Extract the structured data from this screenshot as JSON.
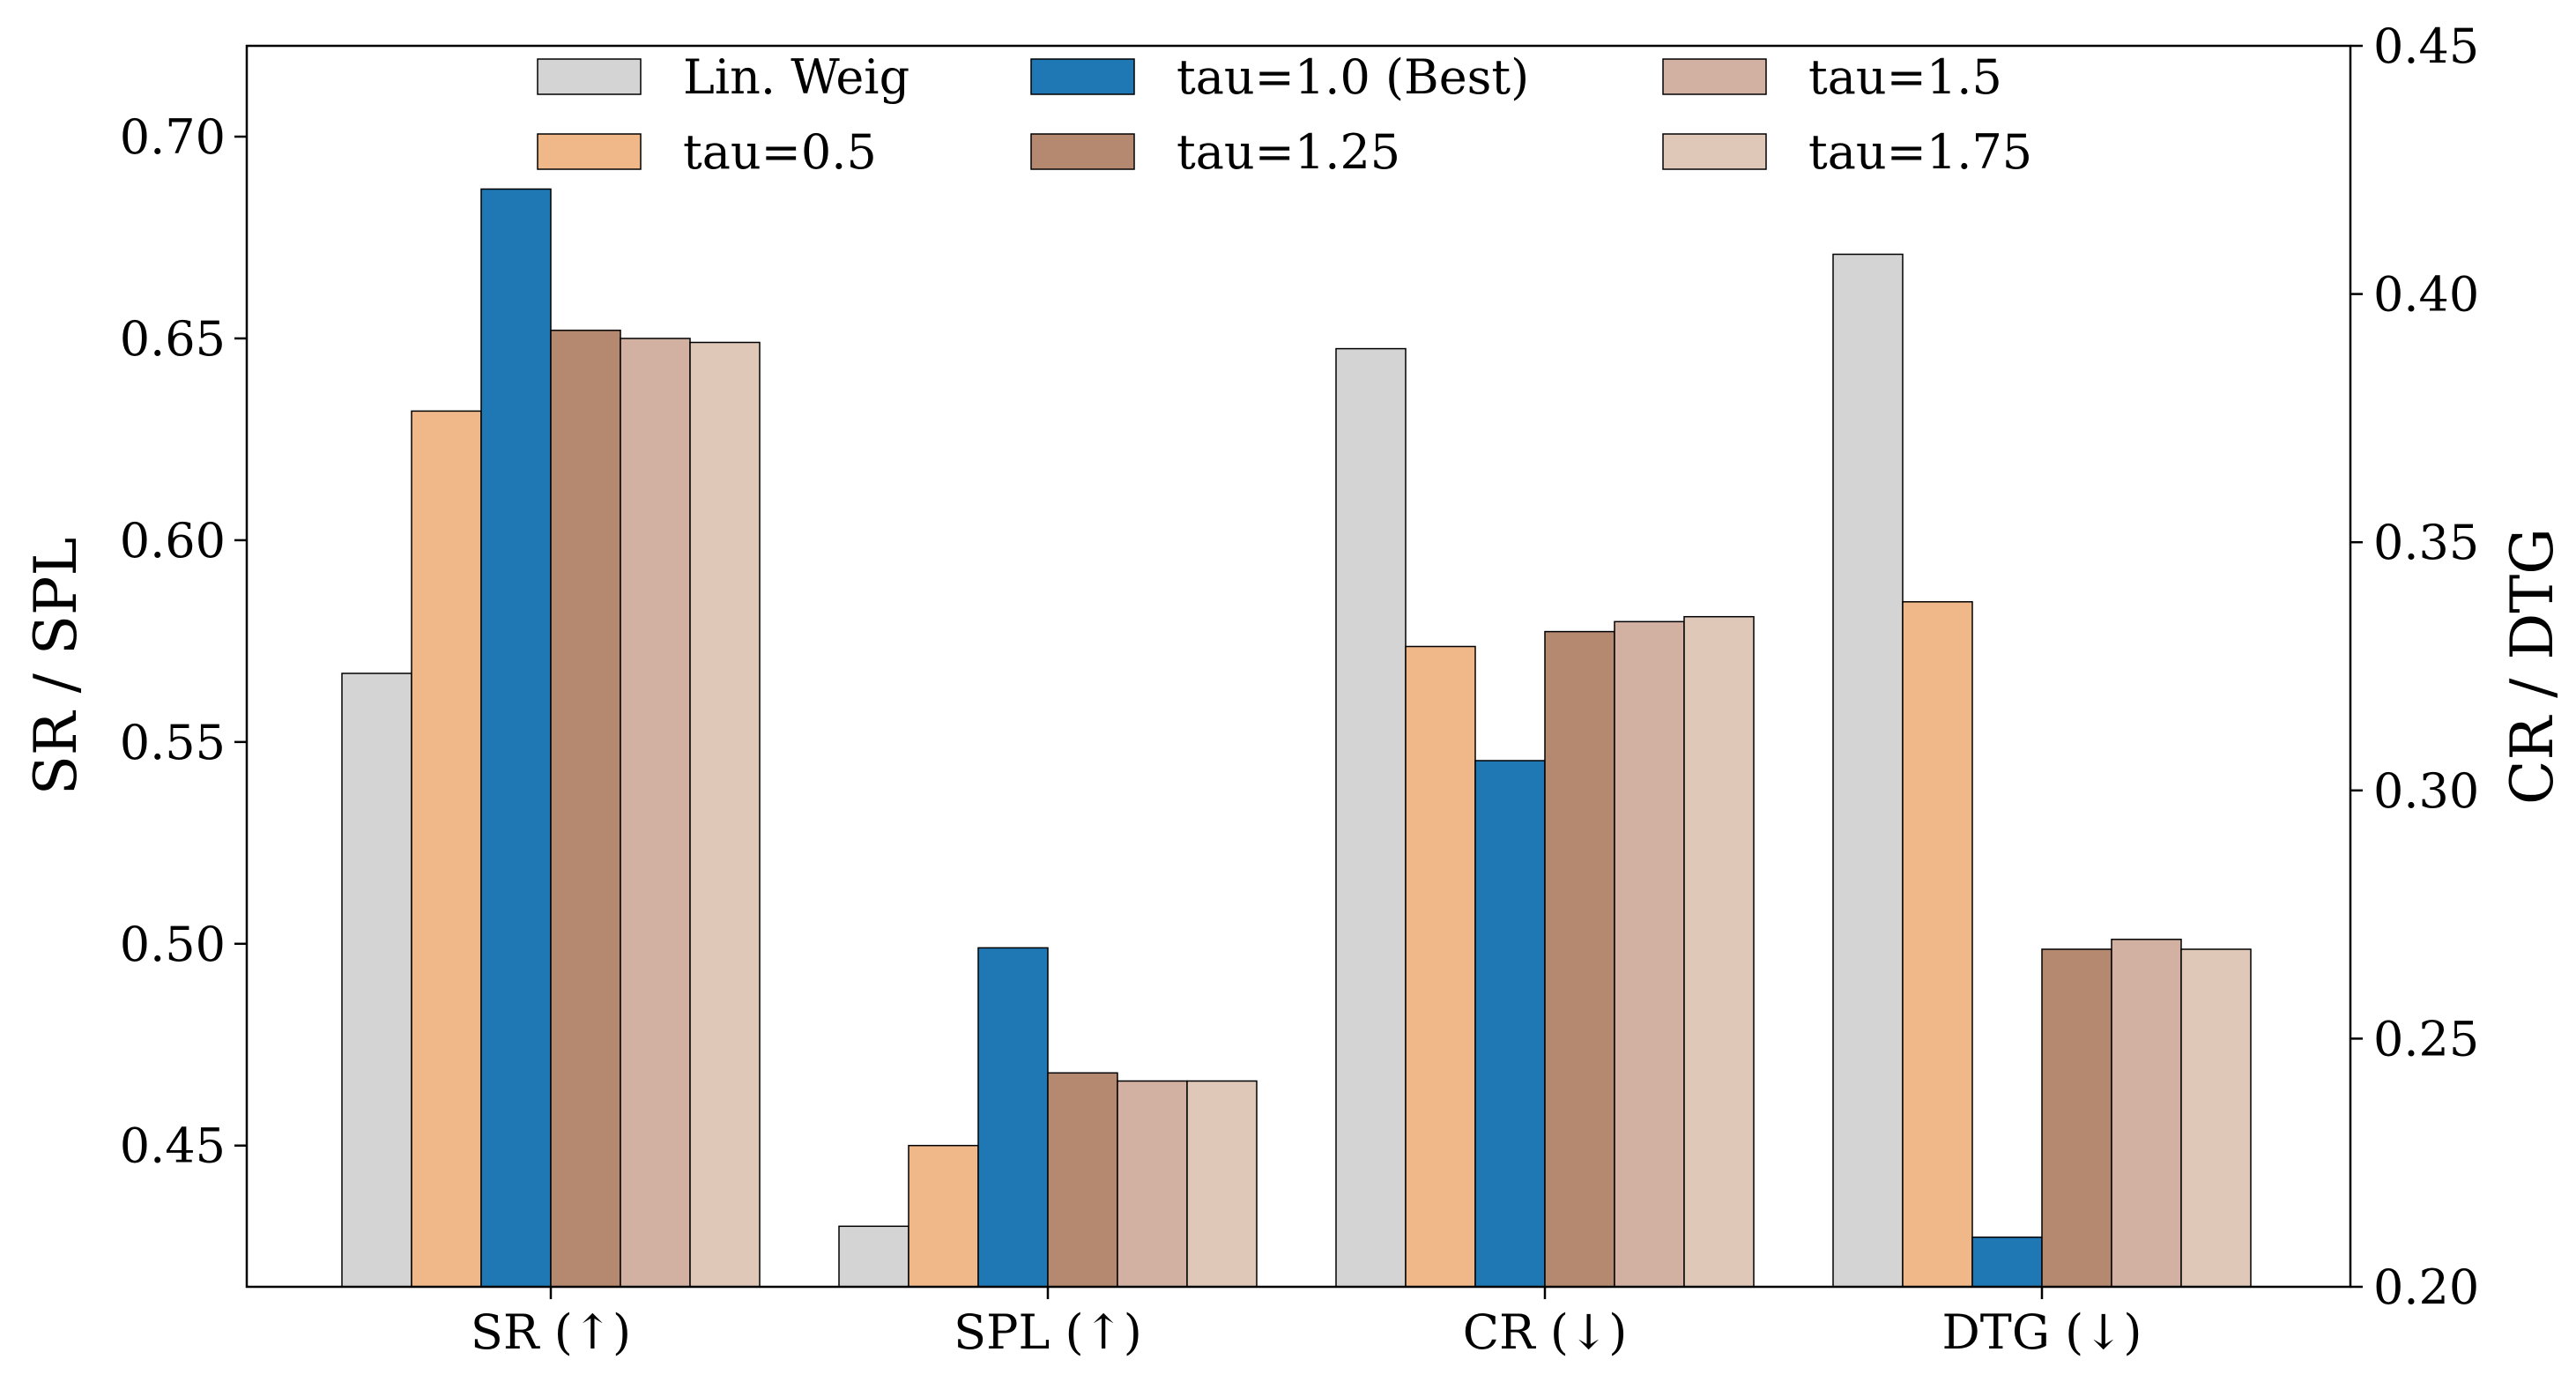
{
  "chart_data": {
    "type": "bar",
    "categories": [
      "SR (↑)",
      "SPL (↑)",
      "CR (↓)",
      "DTG (↓)"
    ],
    "series": [
      {
        "name": "Lin. Weig",
        "color": "#d4d4d4",
        "values": [
          0.567,
          0.43,
          0.389,
          0.408
        ]
      },
      {
        "name": "tau=0.5",
        "color": "#f0b888",
        "values": [
          0.632,
          0.45,
          0.329,
          0.338
        ]
      },
      {
        "name": "tau=1.0 (Best)",
        "color": "#1f77b4",
        "values": [
          0.687,
          0.499,
          0.306,
          0.21
        ]
      },
      {
        "name": "tau=1.25",
        "color": "#b5896f",
        "values": [
          0.652,
          0.468,
          0.332,
          0.268
        ]
      },
      {
        "name": "tau=1.5",
        "color": "#d2b1a3",
        "values": [
          0.65,
          0.466,
          0.334,
          0.27
        ]
      },
      {
        "name": "tau=1.75",
        "color": "#e0c8b9",
        "values": [
          0.649,
          0.466,
          0.335,
          0.268
        ]
      }
    ],
    "axis_by_category": [
      "left",
      "left",
      "right",
      "right"
    ],
    "left_axis": {
      "label": "SR / SPL",
      "range": [
        0.415,
        0.7225
      ],
      "ticks": [
        "0.45",
        "0.50",
        "0.55",
        "0.60",
        "0.65",
        "0.70"
      ]
    },
    "right_axis": {
      "label": "CR / DTG",
      "range": [
        0.2,
        0.45
      ],
      "ticks": [
        "0.20",
        "0.25",
        "0.30",
        "0.35",
        "0.40",
        "0.45"
      ]
    },
    "legend": {
      "position": "top-center",
      "columns": 3
    },
    "grid": false
  }
}
